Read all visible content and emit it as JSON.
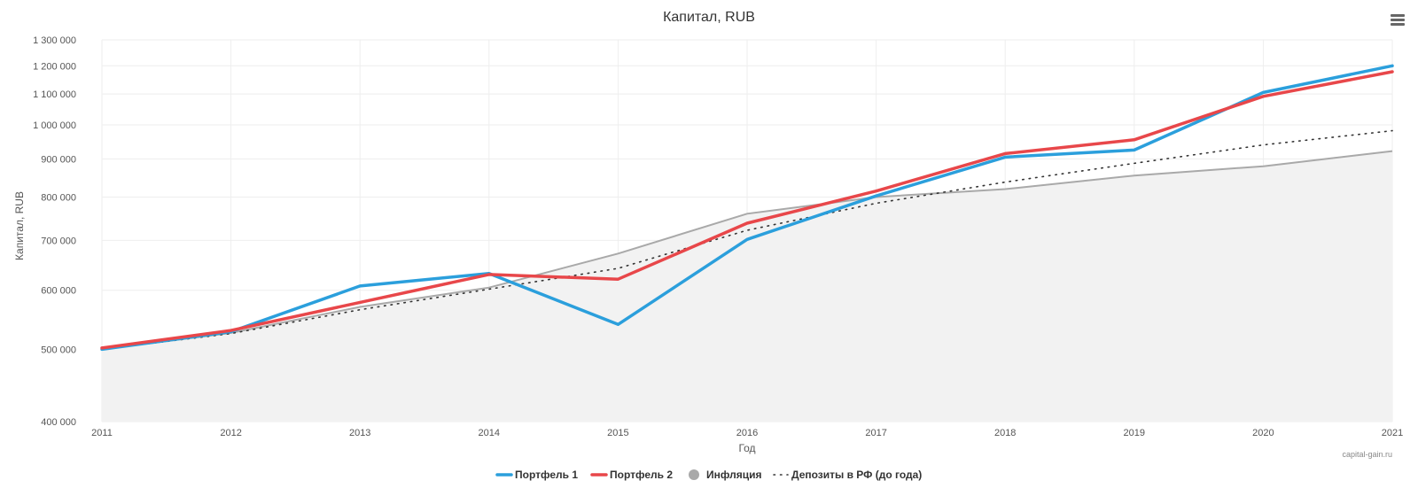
{
  "chart_data": {
    "type": "line",
    "title": "Капитал, RUB",
    "xlabel": "Год",
    "ylabel": "Капитал, RUB",
    "y_scale": "log",
    "ylim": [
      400000,
      1300000
    ],
    "grid": true,
    "legend_position": "bottom",
    "credit": "capital-gain.ru",
    "categories": [
      "2011",
      "2012",
      "2013",
      "2014",
      "2015",
      "2016",
      "2017",
      "2018",
      "2019",
      "2020",
      "2021"
    ],
    "y_ticks": [
      400000,
      500000,
      600000,
      700000,
      800000,
      900000,
      1000000,
      1100000,
      1200000,
      1300000
    ],
    "y_tick_labels": [
      "400 000",
      "500 000",
      "600 000",
      "700 000",
      "800 000",
      "900 000",
      "1 000 000",
      "1 100 000",
      "1 200 000",
      "1 300 000"
    ],
    "series": [
      {
        "name": "Портфель 1",
        "color": "#2b9fdc",
        "style": "line",
        "values": [
          500000,
          528000,
          608000,
          632000,
          540000,
          702000,
          803000,
          905000,
          925000,
          1105000,
          1200000
        ]
      },
      {
        "name": "Портфель 2",
        "color": "#e8474a",
        "style": "line",
        "values": [
          502000,
          530000,
          578000,
          630000,
          621000,
          738000,
          815000,
          915000,
          955000,
          1092000,
          1178000
        ]
      },
      {
        "name": "Инфляция",
        "color": "#a9a9a9",
        "style": "area",
        "values": [
          500000,
          526000,
          570000,
          605000,
          672000,
          760000,
          800000,
          820000,
          855000,
          880000,
          922000
        ]
      },
      {
        "name": "Депозиты в РФ (до года)",
        "color": "#333333",
        "style": "dotted",
        "values": [
          500000,
          525000,
          565000,
          602000,
          642000,
          722000,
          785000,
          838000,
          888000,
          940000,
          982000
        ]
      }
    ]
  },
  "menu_icon": "hamburger-menu-icon"
}
